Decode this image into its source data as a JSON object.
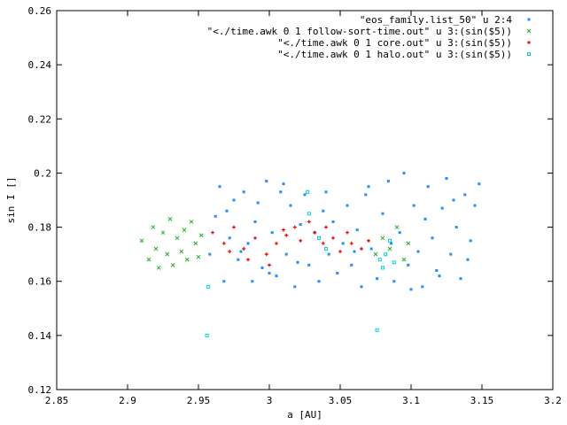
{
  "chart_data": {
    "type": "scatter",
    "xlabel": "a [AU]",
    "ylabel": "sin I []",
    "xlim": [
      2.85,
      3.2
    ],
    "ylim": [
      0.12,
      0.26
    ],
    "xticks": [
      2.85,
      2.9,
      2.95,
      3.0,
      3.05,
      3.1,
      3.15,
      3.2
    ],
    "xtick_labels": [
      "2.85",
      "2.9",
      "2.95",
      "3",
      "3.05",
      "3.1",
      "3.15",
      "3.2"
    ],
    "yticks": [
      0.12,
      0.14,
      0.16,
      0.18,
      0.2,
      0.22,
      0.24,
      0.26
    ],
    "ytick_labels": [
      "0.12",
      "0.14",
      "0.16",
      "0.18",
      "0.2",
      "0.22",
      "0.24",
      "0.26"
    ],
    "grid": false,
    "legend_position": "top-right",
    "series": [
      {
        "name": "\"eos_family.list_50\" u 2:4",
        "color": "#1e90ff",
        "marker": "square",
        "points": [
          [
            2.958,
            0.17
          ],
          [
            2.962,
            0.184
          ],
          [
            2.965,
            0.195
          ],
          [
            2.968,
            0.16
          ],
          [
            2.972,
            0.176
          ],
          [
            2.975,
            0.19
          ],
          [
            2.978,
            0.168
          ],
          [
            2.982,
            0.193
          ],
          [
            2.985,
            0.174
          ],
          [
            2.988,
            0.16
          ],
          [
            2.992,
            0.189
          ],
          [
            2.995,
            0.165
          ],
          [
            2.998,
            0.197
          ],
          [
            3.002,
            0.178
          ],
          [
            3.005,
            0.162
          ],
          [
            3.008,
            0.193
          ],
          [
            3.012,
            0.17
          ],
          [
            3.015,
            0.188
          ],
          [
            3.018,
            0.158
          ],
          [
            3.022,
            0.181
          ],
          [
            3.025,
            0.192
          ],
          [
            3.028,
            0.166
          ],
          [
            3.032,
            0.178
          ],
          [
            3.035,
            0.16
          ],
          [
            3.038,
            0.186
          ],
          [
            3.042,
            0.17
          ],
          [
            3.045,
            0.182
          ],
          [
            3.048,
            0.163
          ],
          [
            3.052,
            0.174
          ],
          [
            3.055,
            0.188
          ],
          [
            3.058,
            0.166
          ],
          [
            3.062,
            0.179
          ],
          [
            3.065,
            0.158
          ],
          [
            3.068,
            0.192
          ],
          [
            3.072,
            0.172
          ],
          [
            3.076,
            0.161
          ],
          [
            3.08,
            0.185
          ],
          [
            3.084,
            0.197
          ],
          [
            3.088,
            0.16
          ],
          [
            3.092,
            0.178
          ],
          [
            3.095,
            0.2
          ],
          [
            3.098,
            0.166
          ],
          [
            3.102,
            0.188
          ],
          [
            3.105,
            0.171
          ],
          [
            3.108,
            0.158
          ],
          [
            3.112,
            0.195
          ],
          [
            3.115,
            0.176
          ],
          [
            3.118,
            0.164
          ],
          [
            3.122,
            0.187
          ],
          [
            3.125,
            0.198
          ],
          [
            3.128,
            0.17
          ],
          [
            3.132,
            0.18
          ],
          [
            3.135,
            0.161
          ],
          [
            3.138,
            0.192
          ],
          [
            3.142,
            0.175
          ],
          [
            3.145,
            0.188
          ],
          [
            3.148,
            0.196
          ],
          [
            2.97,
            0.186
          ],
          [
            2.98,
            0.171
          ],
          [
            2.99,
            0.182
          ],
          [
            3.0,
            0.163
          ],
          [
            3.01,
            0.196
          ],
          [
            3.02,
            0.167
          ],
          [
            3.04,
            0.193
          ],
          [
            3.06,
            0.171
          ],
          [
            3.07,
            0.195
          ],
          [
            3.086,
            0.174
          ],
          [
            3.1,
            0.157
          ],
          [
            3.11,
            0.183
          ],
          [
            3.12,
            0.162
          ],
          [
            3.13,
            0.19
          ],
          [
            3.14,
            0.168
          ]
        ]
      },
      {
        "name": "\"<./time.awk 0 1 follow-sort-time.out\" u 3:(sin($5))",
        "color": "#22b022",
        "marker": "cross",
        "points": [
          [
            2.91,
            0.175
          ],
          [
            2.915,
            0.168
          ],
          [
            2.918,
            0.18
          ],
          [
            2.92,
            0.172
          ],
          [
            2.922,
            0.165
          ],
          [
            2.925,
            0.178
          ],
          [
            2.928,
            0.17
          ],
          [
            2.93,
            0.183
          ],
          [
            2.932,
            0.166
          ],
          [
            2.935,
            0.176
          ],
          [
            2.938,
            0.171
          ],
          [
            2.94,
            0.179
          ],
          [
            2.942,
            0.168
          ],
          [
            2.945,
            0.182
          ],
          [
            2.948,
            0.174
          ],
          [
            2.95,
            0.169
          ],
          [
            2.952,
            0.177
          ],
          [
            3.075,
            0.17
          ],
          [
            3.08,
            0.176
          ],
          [
            3.085,
            0.172
          ],
          [
            3.09,
            0.18
          ],
          [
            3.095,
            0.168
          ],
          [
            3.098,
            0.174
          ]
        ]
      },
      {
        "name": "\"<./time.awk 0 1 core.out\" u 3:(sin($5))",
        "color": "#ee0000",
        "marker": "plus",
        "points": [
          [
            2.96,
            0.178
          ],
          [
            2.968,
            0.174
          ],
          [
            2.975,
            0.18
          ],
          [
            2.982,
            0.172
          ],
          [
            2.99,
            0.176
          ],
          [
            2.998,
            0.17
          ],
          [
            3.005,
            0.174
          ],
          [
            3.012,
            0.177
          ],
          [
            3.018,
            0.18
          ],
          [
            3.022,
            0.175
          ],
          [
            3.028,
            0.182
          ],
          [
            3.032,
            0.178
          ],
          [
            3.038,
            0.174
          ],
          [
            3.045,
            0.176
          ],
          [
            3.05,
            0.171
          ],
          [
            3.058,
            0.174
          ],
          [
            3.065,
            0.172
          ],
          [
            3.07,
            0.175
          ],
          [
            2.985,
            0.168
          ],
          [
            3.0,
            0.166
          ],
          [
            3.01,
            0.179
          ],
          [
            3.04,
            0.18
          ],
          [
            3.055,
            0.178
          ],
          [
            2.972,
            0.171
          ]
        ]
      },
      {
        "name": "\"<./time.awk 0 1 halo.out\" u 3:(sin($5))",
        "color": "#00d0d0",
        "marker": "square-outline",
        "points": [
          [
            2.956,
            0.14
          ],
          [
            2.957,
            0.158
          ],
          [
            3.027,
            0.193
          ],
          [
            3.028,
            0.185
          ],
          [
            3.035,
            0.176
          ],
          [
            3.04,
            0.172
          ],
          [
            3.076,
            0.142
          ],
          [
            3.078,
            0.168
          ],
          [
            3.08,
            0.165
          ],
          [
            3.082,
            0.17
          ],
          [
            3.085,
            0.175
          ],
          [
            3.088,
            0.167
          ]
        ]
      }
    ]
  }
}
